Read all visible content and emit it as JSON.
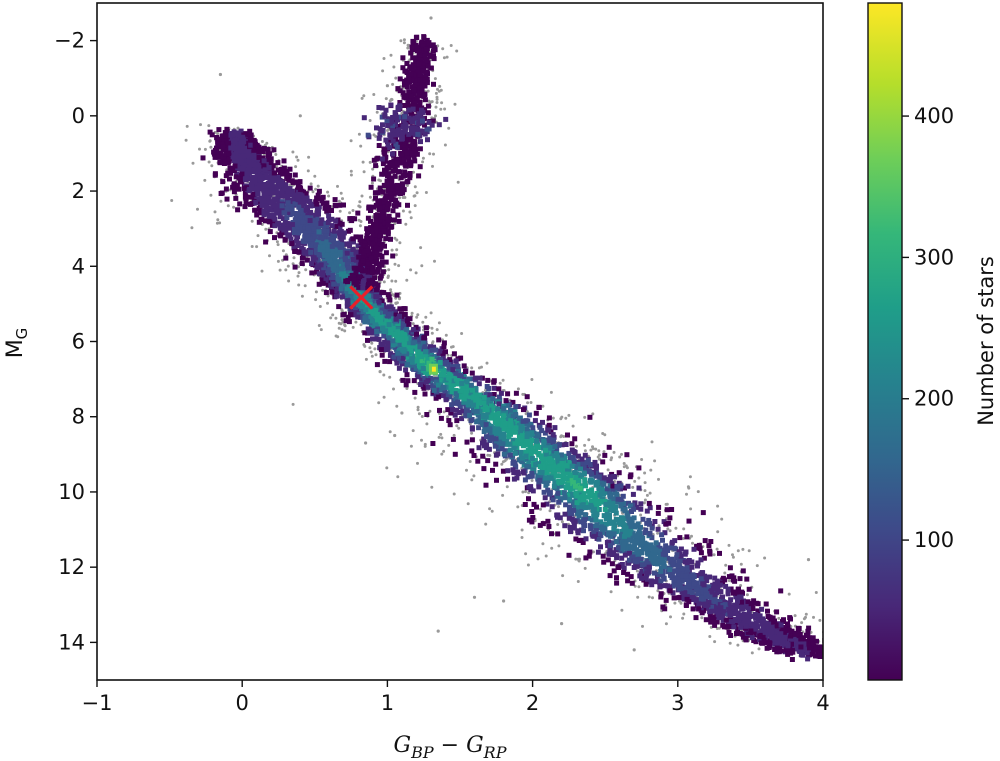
{
  "chart_data": {
    "type": "heatmap",
    "title": "",
    "xlabel_main": "G",
    "xlabel_sub1": "BP",
    "xlabel_op": " − ",
    "xlabel_sub2": "RP",
    "ylabel_main": "M",
    "ylabel_sub": "G",
    "xlim": [
      -1,
      4
    ],
    "ylim": [
      15,
      -3
    ],
    "y_inverted": true,
    "xticks": [
      -1,
      0,
      1,
      2,
      3,
      4
    ],
    "xtick_labels": [
      "−1",
      "0",
      "1",
      "2",
      "3",
      "4"
    ],
    "yticks": [
      -2,
      0,
      2,
      4,
      6,
      8,
      10,
      12,
      14
    ],
    "ytick_labels": [
      "−2",
      "0",
      "2",
      "4",
      "6",
      "8",
      "10",
      "12",
      "14"
    ],
    "colorbar": {
      "label": "Number of stars",
      "colormap": "viridis",
      "range": [
        1,
        480
      ],
      "ticks": [
        100,
        200,
        300,
        400
      ],
      "tick_labels": [
        "100",
        "200",
        "300",
        "400"
      ]
    },
    "main_sequence_ridge": [
      {
        "x": -0.05,
        "y": 0.5,
        "w": 0.12,
        "density": 40
      },
      {
        "x": 0.05,
        "y": 1.3,
        "w": 0.22,
        "density": 60
      },
      {
        "x": 0.3,
        "y": 2.3,
        "w": 0.35,
        "density": 80
      },
      {
        "x": 0.55,
        "y": 3.3,
        "w": 0.3,
        "density": 140
      },
      {
        "x": 0.7,
        "y": 4.2,
        "w": 0.2,
        "density": 200
      },
      {
        "x": 0.85,
        "y": 5.0,
        "w": 0.18,
        "density": 260
      },
      {
        "x": 1.0,
        "y": 5.6,
        "w": 0.2,
        "density": 280
      },
      {
        "x": 1.3,
        "y": 6.7,
        "w": 0.25,
        "density": 300
      },
      {
        "x": 1.7,
        "y": 7.8,
        "w": 0.32,
        "density": 260
      },
      {
        "x": 2.0,
        "y": 8.9,
        "w": 0.4,
        "density": 280
      },
      {
        "x": 2.3,
        "y": 9.8,
        "w": 0.45,
        "density": 300
      },
      {
        "x": 2.6,
        "y": 11.0,
        "w": 0.45,
        "density": 200
      },
      {
        "x": 3.0,
        "y": 12.3,
        "w": 0.4,
        "density": 120
      },
      {
        "x": 3.5,
        "y": 13.5,
        "w": 0.32,
        "density": 60
      },
      {
        "x": 3.9,
        "y": 14.3,
        "w": 0.2,
        "density": 30
      }
    ],
    "giant_branch_ridge": [
      {
        "x": 0.82,
        "y": 4.6,
        "w": 0.1,
        "density": 50
      },
      {
        "x": 0.95,
        "y": 3.0,
        "w": 0.1,
        "density": 40
      },
      {
        "x": 1.05,
        "y": 1.5,
        "w": 0.12,
        "density": 30
      },
      {
        "x": 1.15,
        "y": 0.3,
        "w": 0.15,
        "density": 25
      },
      {
        "x": 1.2,
        "y": -0.8,
        "w": 0.1,
        "density": 10
      },
      {
        "x": 1.25,
        "y": -2.0,
        "w": 0.08,
        "density": 3
      }
    ],
    "red_clump": {
      "x": 1.1,
      "y": 0.3,
      "density": 60
    },
    "hotspot": {
      "x": 1.32,
      "y": 6.75,
      "density": 480
    },
    "marker": {
      "x": 0.82,
      "y": 4.83,
      "symbol": "x",
      "color": "#e8202a"
    },
    "outlier_points": [
      {
        "x": 0.85,
        "y": 8.7
      },
      {
        "x": 1.05,
        "y": 8.5
      },
      {
        "x": 1.35,
        "y": 13.7
      },
      {
        "x": 1.8,
        "y": 12.9
      },
      {
        "x": 1.6,
        "y": 12.8
      },
      {
        "x": 1.1,
        "y": 7.9
      },
      {
        "x": 0.95,
        "y": 6.8
      },
      {
        "x": 0.4,
        "y": 0.0
      },
      {
        "x": -0.15,
        "y": -1.1
      },
      {
        "x": 1.3,
        "y": -2.6
      },
      {
        "x": 1.0,
        "y": -0.8
      },
      {
        "x": 3.9,
        "y": 11.8
      },
      {
        "x": 2.2,
        "y": 13.5
      },
      {
        "x": 2.7,
        "y": 14.2
      }
    ],
    "colors": {
      "scatter_gray": "#9a9a9a",
      "viridis": [
        "#440154",
        "#482878",
        "#3e4989",
        "#31688e",
        "#26828e",
        "#1f9e89",
        "#35b779",
        "#6ece58",
        "#b5de2b",
        "#fde725"
      ]
    }
  }
}
